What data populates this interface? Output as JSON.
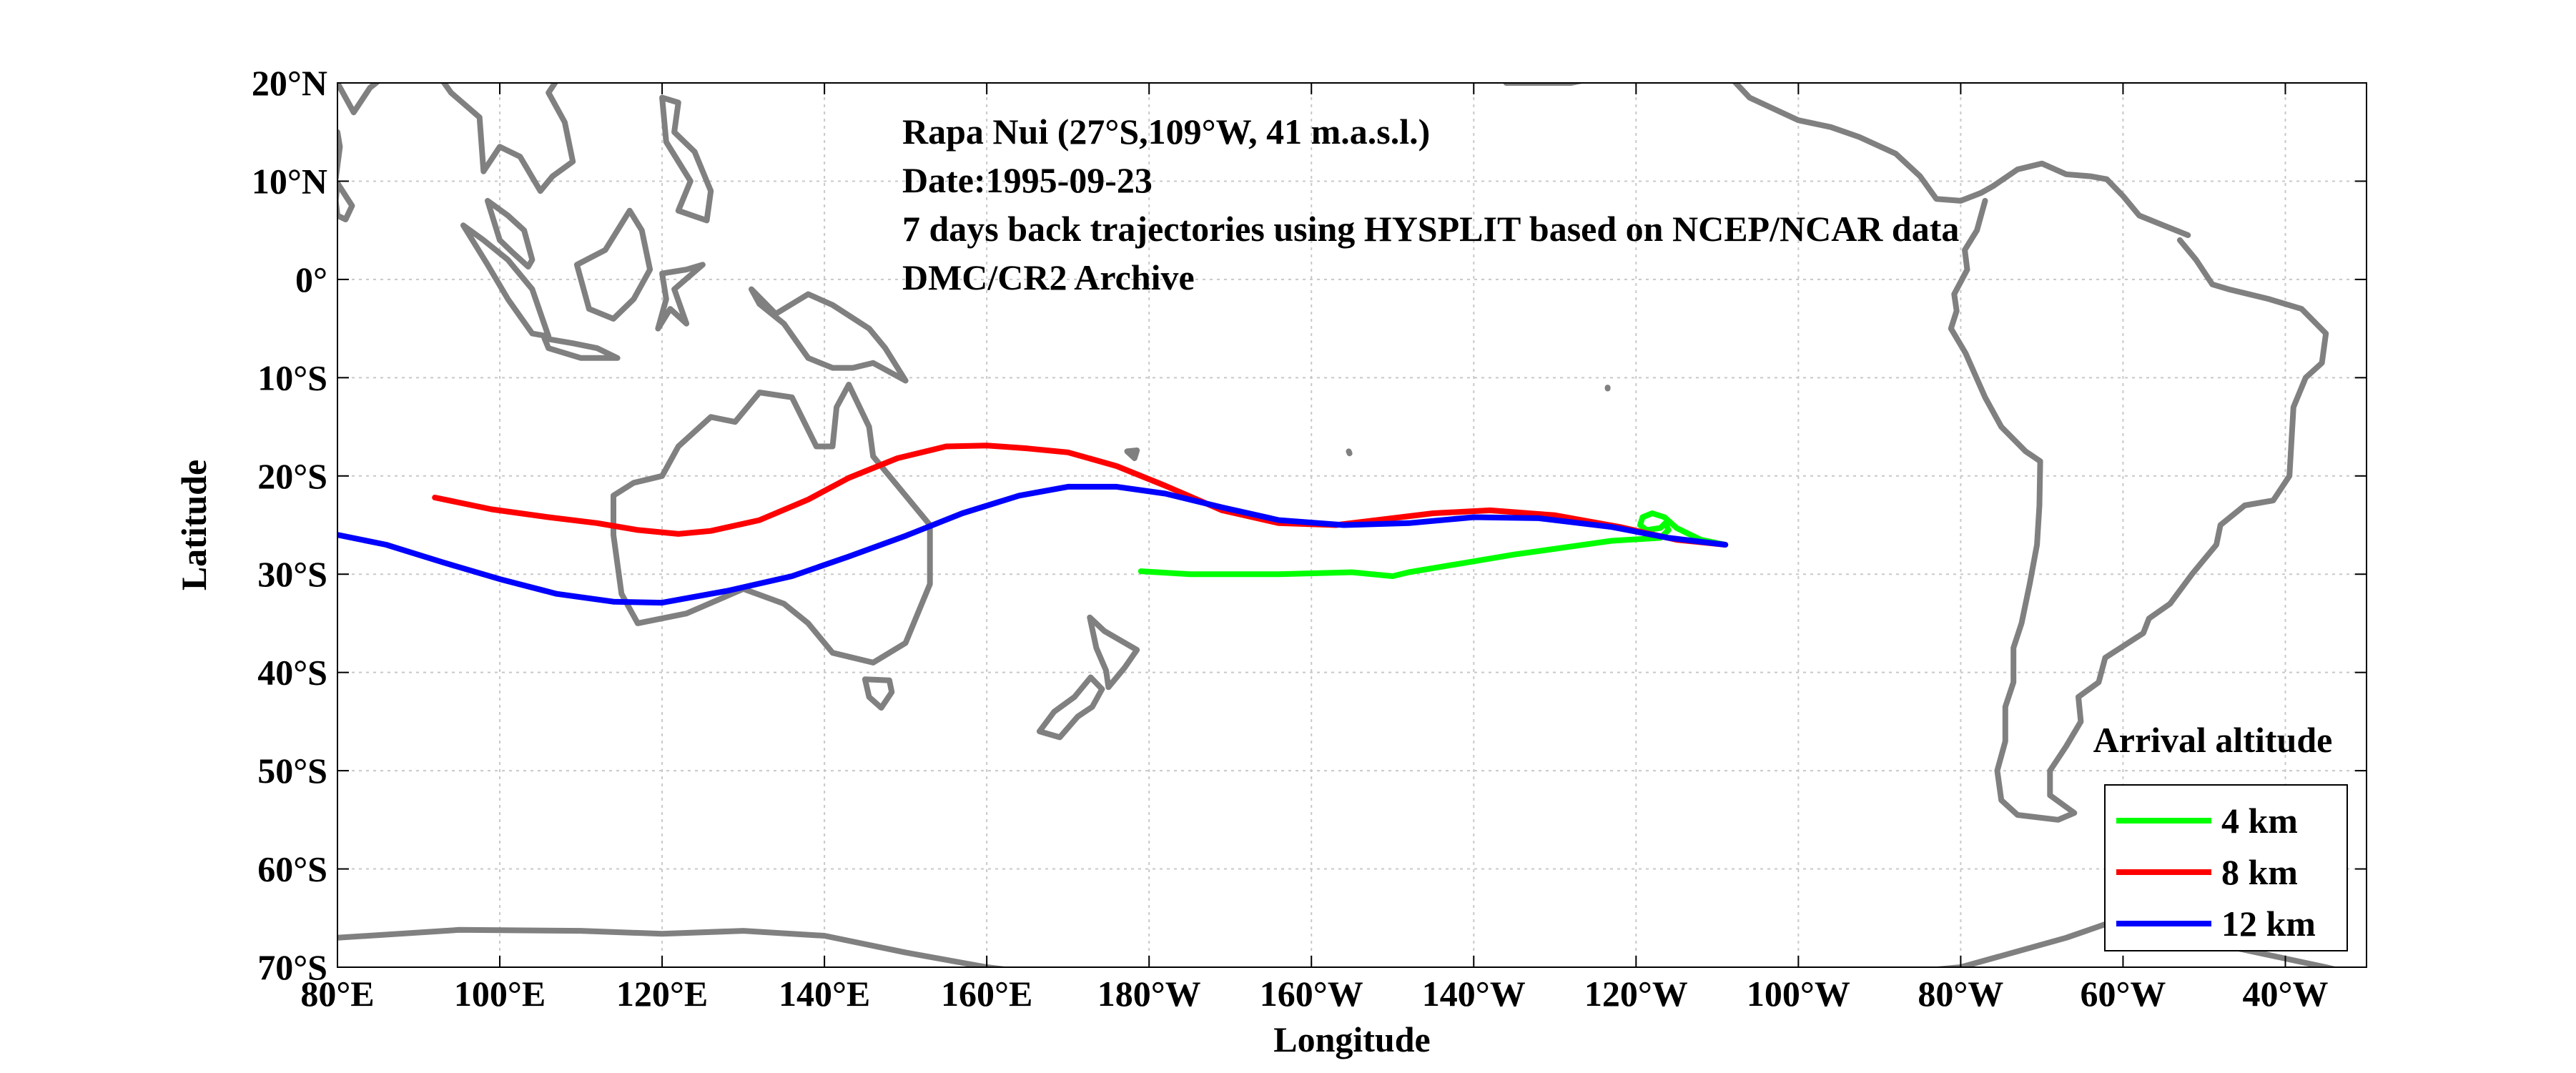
{
  "chart_data": {
    "type": "line",
    "xlabel": "Longitude",
    "ylabel": "Latitude",
    "xlim": [
      80,
      330
    ],
    "ylim": [
      -70,
      20
    ],
    "x_ticks": [
      {
        "value": 80,
        "label": "80°E"
      },
      {
        "value": 100,
        "label": "100°E"
      },
      {
        "value": 120,
        "label": "120°E"
      },
      {
        "value": 140,
        "label": "140°E"
      },
      {
        "value": 160,
        "label": "160°E"
      },
      {
        "value": 180,
        "label": "180°W"
      },
      {
        "value": 200,
        "label": "160°W"
      },
      {
        "value": 220,
        "label": "140°W"
      },
      {
        "value": 240,
        "label": "120°W"
      },
      {
        "value": 260,
        "label": "100°W"
      },
      {
        "value": 280,
        "label": "80°W"
      },
      {
        "value": 300,
        "label": "60°W"
      },
      {
        "value": 320,
        "label": "40°W"
      }
    ],
    "y_ticks": [
      {
        "value": 20,
        "label": "20°N"
      },
      {
        "value": 10,
        "label": "10°N"
      },
      {
        "value": 0,
        "label": "0°"
      },
      {
        "value": -10,
        "label": "10°S"
      },
      {
        "value": -20,
        "label": "20°S"
      },
      {
        "value": -30,
        "label": "30°S"
      },
      {
        "value": -40,
        "label": "40°S"
      },
      {
        "value": -50,
        "label": "50°S"
      },
      {
        "value": -60,
        "label": "60°S"
      },
      {
        "value": -70,
        "label": "70°S"
      }
    ],
    "grid": true,
    "legend_title": "Arrival altitude",
    "legend_position": "bottom-right",
    "annotations": [
      "Rapa Nui (27°S,109°W, 41 m.a.s.l.)",
      "Date:1995-09-23",
      "7 days back trajectories using HYSPLIT based on NCEP/NCAR data",
      "DMC/CR2 Archive"
    ],
    "series": [
      {
        "name": "4 km",
        "color": "#00ff00",
        "points": [
          [
            251,
            -27
          ],
          [
            248,
            -26.5
          ],
          [
            245,
            -25.3
          ],
          [
            243.5,
            -24.2
          ],
          [
            242,
            -23.8
          ],
          [
            240.8,
            -24.2
          ],
          [
            240.5,
            -25
          ],
          [
            241.3,
            -25.5
          ],
          [
            243,
            -25.3
          ],
          [
            243.6,
            -24.8
          ],
          [
            244,
            -25.5
          ],
          [
            243,
            -26.3
          ],
          [
            237,
            -26.6
          ],
          [
            225,
            -28
          ],
          [
            212,
            -29.8
          ],
          [
            210,
            -30.2
          ],
          [
            205,
            -29.8
          ],
          [
            196,
            -30.0
          ],
          [
            185,
            -30
          ],
          [
            179,
            -29.7
          ]
        ]
      },
      {
        "name": "8 km",
        "color": "#ff0000",
        "points": [
          [
            251,
            -27
          ],
          [
            245,
            -26.5
          ],
          [
            238,
            -25.2
          ],
          [
            230,
            -24
          ],
          [
            222,
            -23.5
          ],
          [
            215,
            -23.8
          ],
          [
            208,
            -24.5
          ],
          [
            203,
            -25
          ],
          [
            196,
            -24.8
          ],
          [
            189,
            -23.5
          ],
          [
            182,
            -21
          ],
          [
            176,
            -19
          ],
          [
            170,
            -17.6
          ],
          [
            165,
            -17.2
          ],
          [
            160,
            -16.9
          ],
          [
            155,
            -17
          ],
          [
            149,
            -18.2
          ],
          [
            143,
            -20.2
          ],
          [
            138,
            -22.4
          ],
          [
            132,
            -24.5
          ],
          [
            126,
            -25.6
          ],
          [
            122,
            -25.9
          ],
          [
            117,
            -25.5
          ],
          [
            112,
            -24.8
          ],
          [
            106,
            -24.2
          ],
          [
            99,
            -23.4
          ],
          [
            92,
            -22.2
          ]
        ]
      },
      {
        "name": "12 km",
        "color": "#0000ff",
        "points": [
          [
            251,
            -27
          ],
          [
            244,
            -26.3
          ],
          [
            237,
            -25.2
          ],
          [
            228,
            -24.3
          ],
          [
            220,
            -24.2
          ],
          [
            212,
            -24.8
          ],
          [
            204,
            -25
          ],
          [
            196,
            -24.5
          ],
          [
            189,
            -23.2
          ],
          [
            182,
            -21.8
          ],
          [
            176,
            -21.1
          ],
          [
            170,
            -21.1
          ],
          [
            164,
            -22
          ],
          [
            157,
            -23.8
          ],
          [
            150,
            -26.1
          ],
          [
            143,
            -28.2
          ],
          [
            136,
            -30.2
          ],
          [
            128,
            -31.7
          ],
          [
            120,
            -32.9
          ],
          [
            114,
            -32.8
          ],
          [
            107,
            -32
          ],
          [
            100,
            -30.5
          ],
          [
            93,
            -28.8
          ],
          [
            86,
            -27
          ],
          [
            80,
            -26
          ]
        ]
      }
    ]
  }
}
